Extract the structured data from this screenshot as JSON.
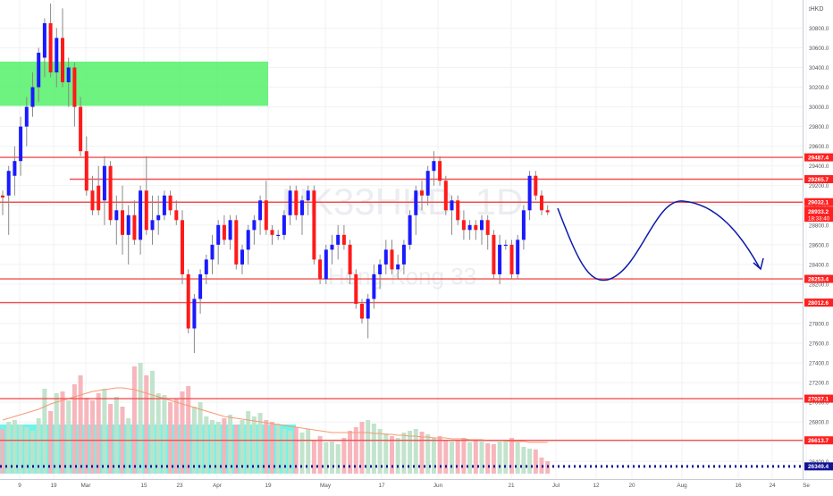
{
  "chart_data": {
    "type": "candlestick",
    "currency": "HKD",
    "watermark": "HK33HKD, 1D",
    "watermark_sub": "Hong Kong 33",
    "ylim": [
      26230,
      31040
    ],
    "y_ticks": [
      26400,
      26600,
      26800,
      27000,
      27200,
      27400,
      27600,
      27800,
      28000,
      28200,
      28400,
      28600,
      28800,
      29000,
      29200,
      29400,
      29600,
      29800,
      30000,
      30200,
      30400,
      30600,
      30800
    ],
    "x_labels": [
      "9",
      "19",
      "Mar",
      "15",
      "23",
      "Apr",
      "19",
      "May",
      "17",
      "Jun",
      "21",
      "Jul",
      "12",
      "20",
      "Aug",
      "16",
      "24",
      "Se"
    ],
    "horizontal_levels": [
      {
        "value": 29487.4,
        "label": "29487.4"
      },
      {
        "value": 29265.7,
        "label": "29265.7"
      },
      {
        "value": 29032.1,
        "label": "29032.1"
      },
      {
        "value": 28253.4,
        "label": "28253.4"
      },
      {
        "value": 28012.6,
        "label": "28012.6"
      },
      {
        "value": 27037.1,
        "label": "27037.1"
      },
      {
        "value": 26613.7,
        "label": "26613.7"
      }
    ],
    "dotted_level": {
      "value": 26349.4,
      "label": "26349.4"
    },
    "current_price": {
      "value": "28933.2",
      "countdown": "18:33:40"
    },
    "supply_zone": {
      "low": 30010,
      "high": 30460
    },
    "candles": [
      [
        29100,
        29150,
        28900,
        29080
      ],
      [
        29100,
        29400,
        28700,
        29350
      ],
      [
        29300,
        29600,
        29100,
        29450
      ],
      [
        29450,
        29900,
        29300,
        29800
      ],
      [
        29800,
        30100,
        29600,
        30000
      ],
      [
        30000,
        30350,
        29900,
        30200
      ],
      [
        30200,
        30600,
        30050,
        30550
      ],
      [
        30500,
        30900,
        30300,
        30850
      ],
      [
        30850,
        31050,
        30300,
        30350
      ],
      [
        30350,
        30800,
        30200,
        30700
      ],
      [
        30700,
        31000,
        30200,
        30250
      ],
      [
        30250,
        30500,
        30000,
        30400
      ],
      [
        30400,
        30450,
        29800,
        30000
      ],
      [
        30000,
        30100,
        29500,
        29550
      ],
      [
        29550,
        29700,
        29100,
        29150
      ],
      [
        29150,
        29300,
        28900,
        28950
      ],
      [
        29200,
        29400,
        28900,
        28950
      ],
      [
        29050,
        29500,
        28800,
        29400
      ],
      [
        29400,
        29450,
        28800,
        28850
      ],
      [
        28850,
        29100,
        28600,
        28950
      ],
      [
        28950,
        29200,
        28500,
        28700
      ],
      [
        28700,
        29000,
        28400,
        28900
      ],
      [
        28900,
        29050,
        28600,
        28650
      ],
      [
        28650,
        29200,
        28500,
        29150
      ],
      [
        29150,
        29500,
        28700,
        28750
      ],
      [
        28750,
        29100,
        28600,
        28850
      ],
      [
        28850,
        29100,
        28700,
        28900
      ],
      [
        28900,
        29150,
        28850,
        29100
      ],
      [
        29100,
        29150,
        28900,
        28950
      ],
      [
        28950,
        29050,
        28800,
        28850
      ],
      [
        28850,
        28950,
        28200,
        28300
      ],
      [
        28300,
        28350,
        27700,
        27750
      ],
      [
        27750,
        28100,
        27500,
        28050
      ],
      [
        28050,
        28350,
        27900,
        28300
      ],
      [
        28300,
        28500,
        28200,
        28450
      ],
      [
        28450,
        28700,
        28300,
        28600
      ],
      [
        28600,
        28850,
        28400,
        28800
      ],
      [
        28800,
        28900,
        28600,
        28650
      ],
      [
        28650,
        28900,
        28550,
        28850
      ],
      [
        28850,
        28900,
        28350,
        28400
      ],
      [
        28400,
        28600,
        28300,
        28550
      ],
      [
        28550,
        28800,
        28400,
        28750
      ],
      [
        28750,
        28900,
        28600,
        28850
      ],
      [
        28850,
        29100,
        28700,
        29050
      ],
      [
        29050,
        29250,
        28700,
        28750
      ],
      [
        28750,
        28800,
        28600,
        28700
      ],
      [
        28700,
        28750,
        28650,
        28700
      ],
      [
        28700,
        28950,
        28650,
        28900
      ],
      [
        28900,
        29200,
        28800,
        29150
      ],
      [
        29150,
        29200,
        28850,
        28900
      ],
      [
        28900,
        29100,
        28700,
        29050
      ],
      [
        29050,
        29200,
        28900,
        29150
      ],
      [
        29150,
        29200,
        28400,
        28450
      ],
      [
        28450,
        28500,
        28200,
        28250
      ],
      [
        28250,
        28600,
        28200,
        28550
      ],
      [
        28550,
        28700,
        28400,
        28600
      ],
      [
        28600,
        28800,
        28450,
        28700
      ],
      [
        28700,
        28800,
        28550,
        28600
      ],
      [
        28600,
        28650,
        28200,
        28300
      ],
      [
        28300,
        28350,
        27950,
        28000
      ],
      [
        28000,
        28050,
        27800,
        27850
      ],
      [
        27850,
        28100,
        27650,
        28050
      ],
      [
        28050,
        28400,
        27950,
        28300
      ],
      [
        28300,
        28450,
        28150,
        28400
      ],
      [
        28400,
        28650,
        28300,
        28550
      ],
      [
        28550,
        28650,
        28300,
        28350
      ],
      [
        28350,
        28500,
        28250,
        28400
      ],
      [
        28400,
        28650,
        28300,
        28600
      ],
      [
        28600,
        28950,
        28550,
        28900
      ],
      [
        28900,
        29200,
        28700,
        29150
      ],
      [
        29150,
        29250,
        28950,
        29100
      ],
      [
        29100,
        29400,
        29000,
        29350
      ],
      [
        29350,
        29550,
        29200,
        29450
      ],
      [
        29450,
        29500,
        29200,
        29250
      ],
      [
        29250,
        29300,
        28900,
        28950
      ],
      [
        28950,
        29100,
        28700,
        29050
      ],
      [
        29050,
        29100,
        28800,
        28850
      ],
      [
        28850,
        28950,
        28650,
        28750
      ],
      [
        28750,
        28850,
        28650,
        28800
      ],
      [
        28800,
        28850,
        28650,
        28750
      ],
      [
        28750,
        28900,
        28600,
        28850
      ],
      [
        28850,
        28900,
        28550,
        28700
      ],
      [
        28700,
        28750,
        28250,
        28300
      ],
      [
        28300,
        28700,
        28200,
        28600
      ],
      [
        28600,
        28650,
        28550,
        28600
      ],
      [
        28600,
        28650,
        28250,
        28300
      ],
      [
        28300,
        28700,
        28250,
        28650
      ],
      [
        28650,
        29000,
        28550,
        28950
      ],
      [
        28950,
        29350,
        28850,
        29300
      ],
      [
        29300,
        29350,
        29050,
        29100
      ],
      [
        29100,
        29150,
        28900,
        28950
      ],
      [
        28950,
        29000,
        28900,
        28930
      ]
    ],
    "volume": {
      "values": [
        50,
        58,
        60,
        55,
        52,
        48,
        62,
        95,
        70,
        90,
        92,
        82,
        100,
        110,
        85,
        82,
        90,
        95,
        78,
        86,
        75,
        62,
        120,
        124,
        110,
        115,
        90,
        88,
        80,
        84,
        92,
        98,
        75,
        80,
        64,
        60,
        58,
        62,
        66,
        55,
        60,
        70,
        64,
        68,
        60,
        58,
        56,
        50,
        48,
        52,
        46,
        50,
        38,
        42,
        35,
        36,
        33,
        40,
        48,
        52,
        58,
        60,
        56,
        50,
        45,
        42,
        40,
        46,
        48,
        50,
        47,
        44,
        40,
        42,
        38,
        36,
        38,
        40,
        35,
        38,
        36,
        34,
        33,
        36,
        38,
        40,
        35,
        30,
        28,
        27,
        18,
        14
      ],
      "moving_average": [
        60,
        62,
        64,
        66,
        68,
        70,
        72,
        75,
        78,
        80,
        82,
        84,
        86,
        88,
        90,
        92,
        93,
        94,
        95,
        96,
        96,
        95,
        94,
        92,
        90,
        88,
        86,
        84,
        82,
        80,
        78,
        76,
        74,
        72,
        70,
        68,
        66,
        64,
        63,
        62,
        61,
        60,
        59,
        58,
        57,
        56,
        55,
        54,
        53,
        52,
        51,
        50,
        49,
        48,
        47,
        46,
        46,
        46,
        46,
        46,
        46,
        46,
        45,
        45,
        44,
        44,
        43,
        43,
        42,
        42,
        41,
        41,
        40,
        40,
        40,
        39,
        39,
        39,
        38,
        38,
        38,
        37,
        37,
        37,
        37,
        36,
        36,
        36,
        35,
        35,
        35,
        35
      ]
    },
    "colors": {
      "up": "#1a1aff",
      "down": "#ff1a1a",
      "level_line": "#f05050",
      "label_bg": "#ff2020",
      "dotted": "#131395",
      "projection": "#0c1aa8",
      "zone": "#55f06a",
      "volume_highlight": "#52f3ea",
      "volume_up": "#bfe1c9",
      "volume_down": "#f7b2b8",
      "volume_ma": "#f59a73"
    }
  }
}
